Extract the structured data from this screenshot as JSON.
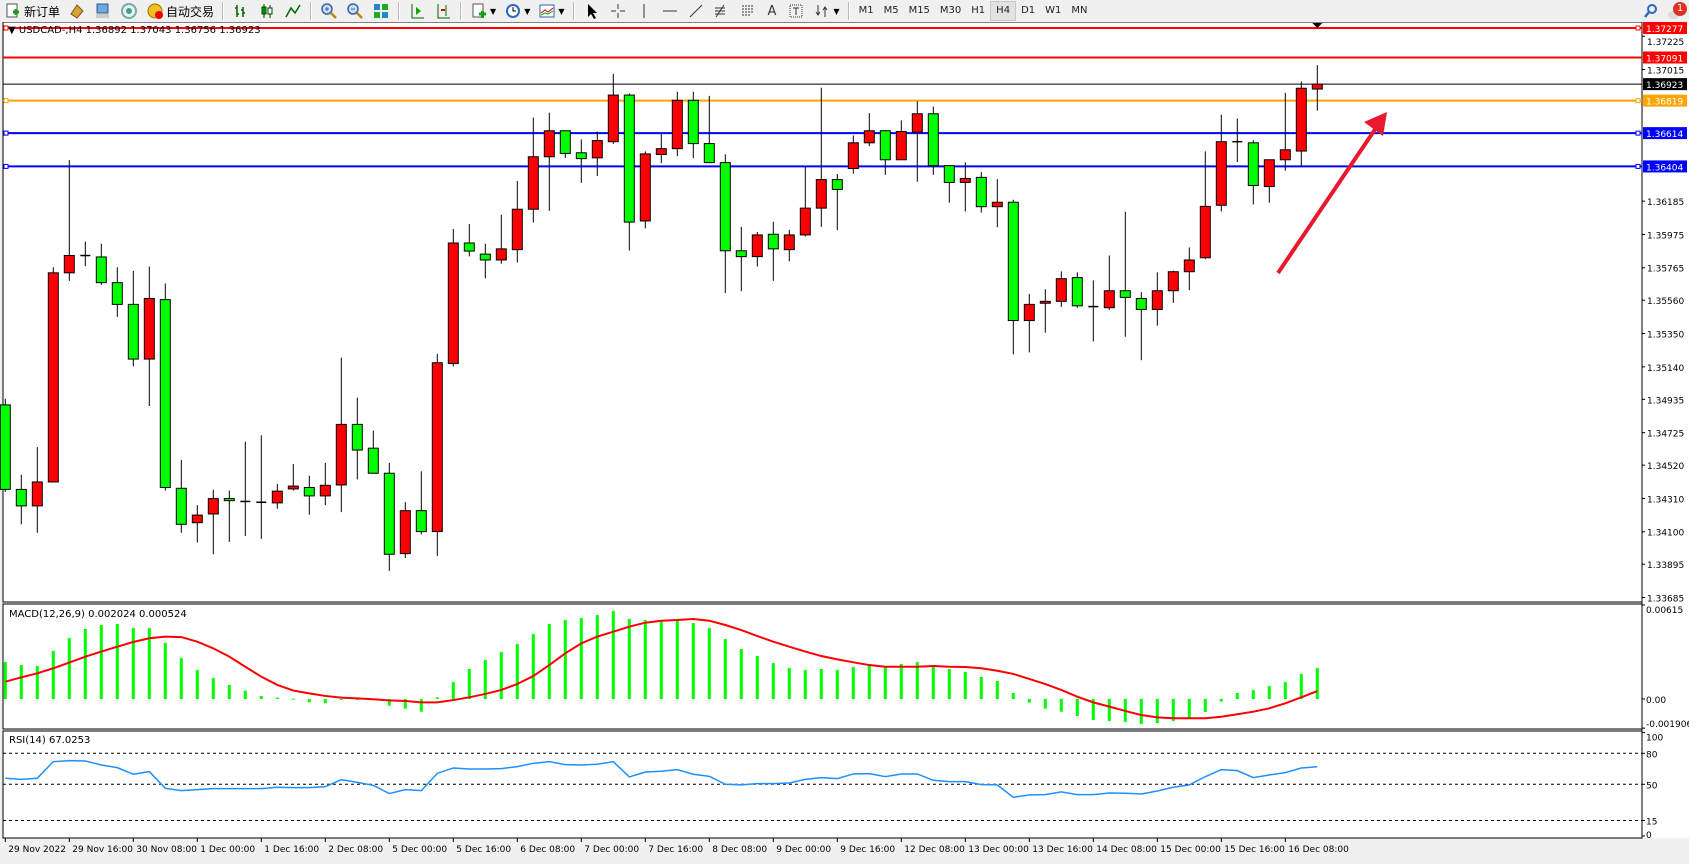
{
  "toolbar": {
    "items": [
      {
        "icon": "new-order-icon",
        "label": "新订单"
      },
      {
        "icon": "history-icon",
        "label": ""
      },
      {
        "icon": "terminal-icon",
        "label": ""
      },
      {
        "icon": "signal-icon",
        "label": ""
      },
      {
        "icon": "auto-trading-icon",
        "label": "自动交易"
      }
    ],
    "chart_tools": [
      "bar-chart-icon",
      "candlestick-icon",
      "line-chart-icon",
      "zoom-in-icon",
      "zoom-out-icon",
      "tile-windows-icon",
      "auto-scroll-icon",
      "chart-shift-icon",
      "indicators-icon",
      "periods-icon",
      "templates-icon",
      "cursor-icon",
      "crosshair-icon",
      "vertical-line-icon",
      "horizontal-line-icon",
      "trendline-icon",
      "fibonacci-icon",
      "fibo-fan-icon",
      "text-icon",
      "text-label-icon",
      "arrows-icon"
    ],
    "text_tool_label": "A",
    "timeframes": [
      "M1",
      "M5",
      "M15",
      "M30",
      "H1",
      "H4",
      "D1",
      "W1",
      "MN"
    ],
    "active_timeframe": "H4",
    "notification_count": "1"
  },
  "chart": {
    "symbol_header": "USDCAD-,H4  1.36892 1.37043 1.36756 1.36923",
    "colors": {
      "bull": "#ff0000",
      "bear": "#00ff00",
      "support": "#0000ff",
      "resistance": "#ff0000",
      "pivot": "#ffa500",
      "bid": "#000000",
      "arrow": "#e8192c",
      "rsi": "#1e90ff",
      "macd_signal": "#ff0000",
      "macd_hist": "#00ff00"
    },
    "price_ticks": [
      "1.37225",
      "1.37015",
      "1.36185",
      "1.35975",
      "1.35765",
      "1.35560",
      "1.35350",
      "1.35140",
      "1.34935",
      "1.34725",
      "1.34520",
      "1.34310",
      "1.34100",
      "1.33895",
      "1.33685"
    ],
    "levels": [
      {
        "price": "1.37277",
        "color": "#ff0000",
        "handle": true
      },
      {
        "price": "1.37091",
        "color": "#ff0000",
        "handle": false
      },
      {
        "price": "1.36923",
        "color": "#000000",
        "handle": false
      },
      {
        "price": "1.36819",
        "color": "#ffa500",
        "handle": true
      },
      {
        "price": "1.36614",
        "color": "#0000ff",
        "handle": true
      },
      {
        "price": "1.36404",
        "color": "#0000ff",
        "handle": true
      }
    ],
    "time_labels": [
      "29 Nov 2022",
      "29 Nov 16:00",
      "30 Nov 08:00",
      "1 Dec 00:00",
      "1 Dec 16:00",
      "2 Dec 08:00",
      "5 Dec 00:00",
      "5 Dec 16:00",
      "6 Dec 08:00",
      "7 Dec 00:00",
      "7 Dec 16:00",
      "8 Dec 08:00",
      "9 Dec 00:00",
      "9 Dec 16:00",
      "12 Dec 08:00",
      "13 Dec 00:00",
      "13 Dec 16:00",
      "14 Dec 08:00",
      "15 Dec 00:00",
      "15 Dec 16:00",
      "16 Dec 08:00"
    ],
    "annotation": "red arrow pointing up-right toward 1.36819"
  },
  "macd": {
    "label": "MACD(12,26,9) 0.002024 0.000524",
    "axis_ticks": [
      "0.00615",
      "0.00",
      "-0.001906"
    ]
  },
  "rsi": {
    "label": "RSI(14) 67.0253",
    "axis_ticks": [
      "100",
      "80",
      "50",
      "15",
      "0"
    ]
  },
  "chart_data": {
    "type": "candlestick",
    "timeframe": "H4",
    "ohlc": [
      [
        1.349,
        1.34939,
        1.34351,
        1.34367
      ],
      [
        1.34367,
        1.3446,
        1.34147,
        1.34263
      ],
      [
        1.34263,
        1.34634,
        1.34094,
        1.34414
      ],
      [
        1.34414,
        1.35768,
        1.34414,
        1.35733
      ],
      [
        1.35733,
        1.36444,
        1.35682,
        1.35842
      ],
      [
        1.35842,
        1.3593,
        1.35775,
        1.35842
      ],
      [
        1.35833,
        1.35916,
        1.35657,
        1.35671
      ],
      [
        1.35671,
        1.35768,
        1.35455,
        1.35534
      ],
      [
        1.35534,
        1.35745,
        1.35143,
        1.35189
      ],
      [
        1.35189,
        1.35773,
        1.34893,
        1.35571
      ],
      [
        1.35564,
        1.35666,
        1.3436,
        1.34379
      ],
      [
        1.34374,
        1.34553,
        1.34094,
        1.34147
      ],
      [
        1.34157,
        1.34268,
        1.34032,
        1.34205
      ],
      [
        1.34212,
        1.34365,
        1.33958,
        1.34309
      ],
      [
        1.34309,
        1.3436,
        1.34036,
        1.34296
      ],
      [
        1.34291,
        1.34668,
        1.34073,
        1.34291
      ],
      [
        1.34286,
        1.34708,
        1.34055,
        1.34286
      ],
      [
        1.34282,
        1.34402,
        1.34245,
        1.34356
      ],
      [
        1.3437,
        1.34527,
        1.3436,
        1.34388
      ],
      [
        1.34379,
        1.34453,
        1.34208,
        1.34326
      ],
      [
        1.34326,
        1.34534,
        1.34268,
        1.34393
      ],
      [
        1.34395,
        1.35198,
        1.34224,
        1.34777
      ],
      [
        1.34777,
        1.34946,
        1.3443,
        1.34615
      ],
      [
        1.34627,
        1.34738,
        1.34469,
        1.34469
      ],
      [
        1.34469,
        1.34534,
        1.33853,
        1.33958
      ],
      [
        1.33962,
        1.34286,
        1.33934,
        1.34233
      ],
      [
        1.34233,
        1.34481,
        1.34083,
        1.34101
      ],
      [
        1.34101,
        1.35222,
        1.33948,
        1.35166
      ],
      [
        1.35161,
        1.36009,
        1.35143,
        1.35921
      ],
      [
        1.35921,
        1.36041,
        1.35837,
        1.3587
      ],
      [
        1.35851,
        1.35916,
        1.35698,
        1.35814
      ],
      [
        1.35814,
        1.36099,
        1.35791,
        1.35884
      ],
      [
        1.35879,
        1.36312,
        1.35798,
        1.36134
      ],
      [
        1.36134,
        1.36712,
        1.3605,
        1.36465
      ],
      [
        1.36465,
        1.36743,
        1.36124,
        1.36629
      ],
      [
        1.36629,
        1.36629,
        1.36458,
        1.36486
      ],
      [
        1.3649,
        1.36574,
        1.363,
        1.36453
      ],
      [
        1.36458,
        1.36624,
        1.36344,
        1.36567
      ],
      [
        1.3656,
        1.36988,
        1.36546,
        1.36854
      ],
      [
        1.36854,
        1.36865,
        1.35874,
        1.36053
      ],
      [
        1.3606,
        1.36499,
        1.36013,
        1.36483
      ],
      [
        1.36479,
        1.36611,
        1.36425,
        1.36516
      ],
      [
        1.36516,
        1.36875,
        1.36469,
        1.36821
      ],
      [
        1.36821,
        1.36875,
        1.36456,
        1.36548
      ],
      [
        1.36548,
        1.36849,
        1.36428,
        1.36428
      ],
      [
        1.36428,
        1.36481,
        1.35606,
        1.35872
      ],
      [
        1.35872,
        1.36023,
        1.35617,
        1.35835
      ],
      [
        1.35835,
        1.3599,
        1.35773,
        1.35972
      ],
      [
        1.35976,
        1.36055,
        1.35682,
        1.35884
      ],
      [
        1.35879,
        1.36004,
        1.35805,
        1.35972
      ],
      [
        1.35972,
        1.36405,
        1.35962,
        1.36141
      ],
      [
        1.36141,
        1.369,
        1.36023,
        1.36321
      ],
      [
        1.36321,
        1.36356,
        1.36002,
        1.36259
      ],
      [
        1.36391,
        1.36599,
        1.36358,
        1.36553
      ],
      [
        1.36553,
        1.3674,
        1.36532,
        1.36629
      ],
      [
        1.36629,
        1.36634,
        1.36351,
        1.36446
      ],
      [
        1.36446,
        1.36694,
        1.36446,
        1.36624
      ],
      [
        1.3662,
        1.36814,
        1.36307,
        1.36736
      ],
      [
        1.36736,
        1.36782,
        1.36351,
        1.36409
      ],
      [
        1.36409,
        1.36409,
        1.36175,
        1.36303
      ],
      [
        1.36303,
        1.3643,
        1.3612,
        1.36328
      ],
      [
        1.36335,
        1.36368,
        1.36113,
        1.3615
      ],
      [
        1.3615,
        1.36324,
        1.3602,
        1.36178
      ],
      [
        1.36178,
        1.36194,
        1.35219,
        1.35432
      ],
      [
        1.35432,
        1.35599,
        1.35231,
        1.35534
      ],
      [
        1.35541,
        1.35629,
        1.35356,
        1.35553
      ],
      [
        1.35553,
        1.35742,
        1.35518,
        1.35696
      ],
      [
        1.35703,
        1.35736,
        1.35513,
        1.35525
      ],
      [
        1.3552,
        1.35685,
        1.353,
        1.3552
      ],
      [
        1.35513,
        1.35842,
        1.35499,
        1.3562
      ],
      [
        1.3562,
        1.36118,
        1.3533,
        1.35578
      ],
      [
        1.35571,
        1.35611,
        1.35182,
        1.35502
      ],
      [
        1.35502,
        1.35736,
        1.354,
        1.3562
      ],
      [
        1.3562,
        1.35747,
        1.35543,
        1.3574
      ],
      [
        1.3574,
        1.35893,
        1.35624,
        1.35814
      ],
      [
        1.35828,
        1.36499,
        1.35819,
        1.36152
      ],
      [
        1.36159,
        1.36731,
        1.3612,
        1.3656
      ],
      [
        1.3656,
        1.36706,
        1.36432,
        1.3656
      ],
      [
        1.36553,
        1.36569,
        1.36164,
        1.36284
      ],
      [
        1.36277,
        1.36446,
        1.36175,
        1.36446
      ],
      [
        1.36446,
        1.36868,
        1.36377,
        1.36509
      ],
      [
        1.36501,
        1.36939,
        1.36406,
        1.36897
      ],
      [
        1.36892,
        1.37043,
        1.36756,
        1.36923
      ]
    ],
    "price_range": [
      1.33685,
      1.37277
    ],
    "macd_histogram": [
      0.00242,
      0.00222,
      0.00216,
      0.00314,
      0.00399,
      0.00458,
      0.00484,
      0.00491,
      0.00464,
      0.00464,
      0.00366,
      0.00268,
      0.0019,
      0.00137,
      0.00092,
      0.00055,
      0.0002,
      9e-05,
      2e-05,
      -0.00022,
      -0.00028,
      -4e-05,
      -1e-05,
      0.0,
      -0.00044,
      -0.00063,
      -0.00083,
      0.00011,
      0.00111,
      0.00196,
      0.00255,
      0.00307,
      0.0036,
      0.00425,
      0.00491,
      0.00517,
      0.0053,
      0.00549,
      0.00576,
      0.00523,
      0.00517,
      0.0051,
      0.00517,
      0.00497,
      0.00464,
      0.00392,
      0.00327,
      0.00281,
      0.00235,
      0.00203,
      0.0019,
      0.00196,
      0.0019,
      0.00209,
      0.00222,
      0.00216,
      0.00229,
      0.00242,
      0.00222,
      0.00196,
      0.00177,
      0.00144,
      0.00118,
      0.00039,
      -0.00024,
      -0.00063,
      -0.00083,
      -0.00111,
      -0.00137,
      -0.00144,
      -0.0015,
      -0.00164,
      -0.00157,
      -0.00144,
      -0.00131,
      -0.00085,
      -0.00017,
      0.00039,
      0.00059,
      0.00085,
      0.00111,
      0.00164,
      0.00202
    ],
    "macd_signal": [
      0.00113,
      0.00142,
      0.00168,
      0.00201,
      0.00238,
      0.00277,
      0.0031,
      0.00342,
      0.00373,
      0.00397,
      0.00408,
      0.00405,
      0.00375,
      0.00331,
      0.00277,
      0.00211,
      0.00146,
      0.00092,
      0.00055,
      0.00037,
      0.0002,
      9e-05,
      4e-05,
      -2e-05,
      -9e-05,
      -0.00013,
      -0.00022,
      -0.00022,
      -7e-05,
      0.00011,
      0.00033,
      0.00059,
      0.00098,
      0.0015,
      0.00222,
      0.00299,
      0.00364,
      0.00408,
      0.0044,
      0.00473,
      0.00499,
      0.00512,
      0.00517,
      0.00523,
      0.00512,
      0.00484,
      0.00451,
      0.00412,
      0.00375,
      0.00342,
      0.0031,
      0.00281,
      0.00259,
      0.0024,
      0.00222,
      0.00211,
      0.00211,
      0.00211,
      0.00216,
      0.00211,
      0.00209,
      0.00201,
      0.00185,
      0.00164,
      0.00131,
      0.00098,
      0.00059,
      0.00015,
      -0.00022,
      -0.0005,
      -0.00078,
      -0.00105,
      -0.0012,
      -0.00126,
      -0.00126,
      -0.00126,
      -0.00116,
      -0.001,
      -0.00083,
      -0.00061,
      -0.00028,
      0.00011,
      0.00052
    ],
    "macd_range": [
      -0.001906,
      0.00615
    ],
    "rsi": [
      55.8,
      54.8,
      55.8,
      71.9,
      72.9,
      72.6,
      68.7,
      66.1,
      59.7,
      62.3,
      46.1,
      43.9,
      44.8,
      45.8,
      45.8,
      45.8,
      45.8,
      47.1,
      46.8,
      46.8,
      47.7,
      54.5,
      51.9,
      49.0,
      41.0,
      44.8,
      43.9,
      60.6,
      65.8,
      64.8,
      64.8,
      65.2,
      67.1,
      70.3,
      71.9,
      69.0,
      68.7,
      69.4,
      71.9,
      57.1,
      61.9,
      62.6,
      64.2,
      59.7,
      57.7,
      50.0,
      49.4,
      50.6,
      50.6,
      51.3,
      54.8,
      56.5,
      55.5,
      60.0,
      60.3,
      57.4,
      60.0,
      60.0,
      53.9,
      52.6,
      52.6,
      49.7,
      49.4,
      37.4,
      39.7,
      40.0,
      42.6,
      40.0,
      40.0,
      41.6,
      41.3,
      40.6,
      43.5,
      47.1,
      49.4,
      57.4,
      64.2,
      63.2,
      56.5,
      59.0,
      61.3,
      65.8,
      67.0
    ],
    "rsi_levels": [
      80,
      50,
      15
    ],
    "rsi_range": [
      0,
      100
    ]
  }
}
